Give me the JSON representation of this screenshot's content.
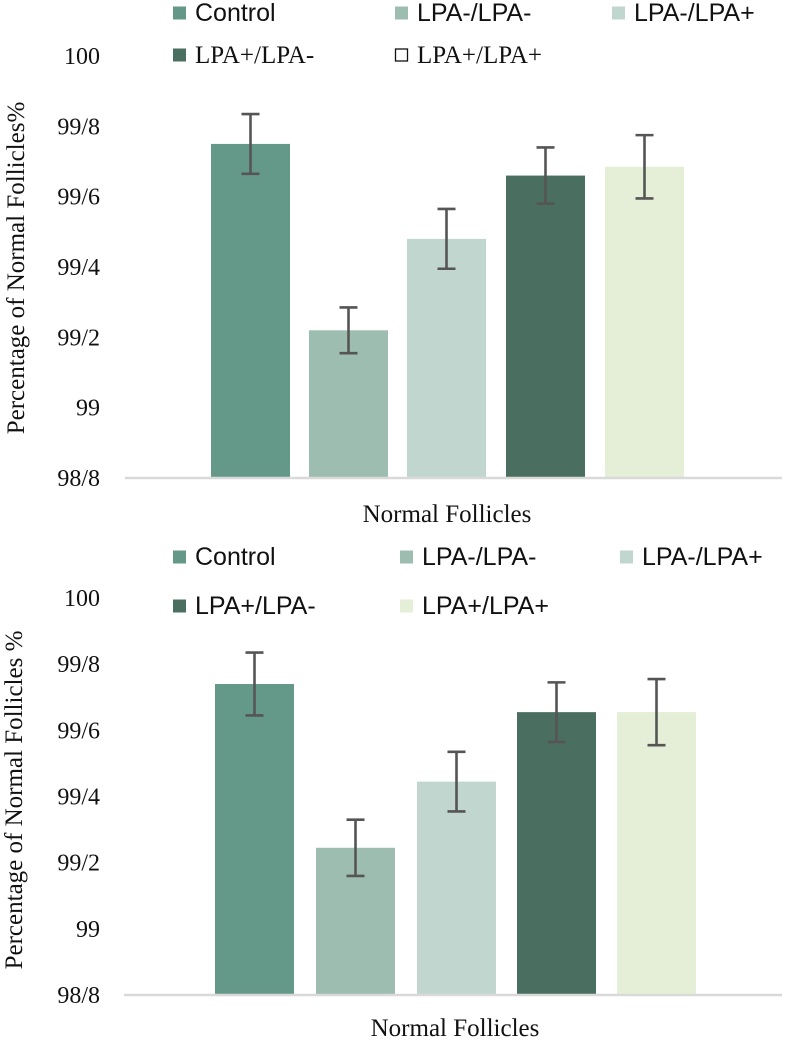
{
  "chart_data": [
    {
      "type": "bar",
      "title": "",
      "xlabel": "Normal Follicles",
      "ylabel": "Percentage of Normal Follicles%",
      "ylim": [
        98.8,
        100
      ],
      "yticks": [
        98.8,
        99,
        99.2,
        99.4,
        99.6,
        99.8,
        100
      ],
      "ytick_labels": [
        "98/8",
        "99",
        "99/2",
        "99/4",
        "99/6",
        "99/8",
        "100"
      ],
      "grid": false,
      "legend_position": "top",
      "series": [
        {
          "name": "Control",
          "value": 99.75,
          "error": 0.085,
          "color": "#64998a",
          "legend_marker": "filled"
        },
        {
          "name": "LPA-/LPA-",
          "value": 99.22,
          "error": 0.065,
          "color": "#9dbdb1",
          "legend_marker": "filled"
        },
        {
          "name": "LPA-/LPA+",
          "value": 99.48,
          "error": 0.085,
          "color": "#c1d6ce",
          "legend_marker": "filled"
        },
        {
          "name": "LPA+/LPA-",
          "value": 99.66,
          "error": 0.08,
          "color": "#4a6f60",
          "legend_marker": "filled"
        },
        {
          "name": "LPA+/LPA+",
          "value": 99.685,
          "error": 0.09,
          "color": "#e5eed6",
          "legend_marker": "hollow"
        }
      ]
    },
    {
      "type": "bar",
      "title": "",
      "xlabel": "Normal Follicles",
      "ylabel": "Percentage of Normal Follicles %",
      "ylim": [
        98.8,
        100
      ],
      "yticks": [
        98.8,
        99,
        99.2,
        99.4,
        99.6,
        99.8,
        100
      ],
      "ytick_labels": [
        "98/8",
        "99",
        "99/2",
        "99/4",
        "99/6",
        "99/8",
        "100"
      ],
      "grid": false,
      "legend_position": "top",
      "series": [
        {
          "name": "Control",
          "value": 99.74,
          "error": 0.095,
          "color": "#64998a",
          "legend_marker": "filled"
        },
        {
          "name": "LPA-/LPA-",
          "value": 99.245,
          "error": 0.085,
          "color": "#9dbdb1",
          "legend_marker": "filled"
        },
        {
          "name": "LPA-/LPA+",
          "value": 99.445,
          "error": 0.09,
          "color": "#c1d6ce",
          "legend_marker": "filled"
        },
        {
          "name": "LPA+/LPA-",
          "value": 99.655,
          "error": 0.09,
          "color": "#4a6f60",
          "legend_marker": "filled"
        },
        {
          "name": "LPA+/LPA+",
          "value": 99.655,
          "error": 0.1,
          "color": "#e5eed6",
          "legend_marker": "filled"
        }
      ]
    }
  ]
}
